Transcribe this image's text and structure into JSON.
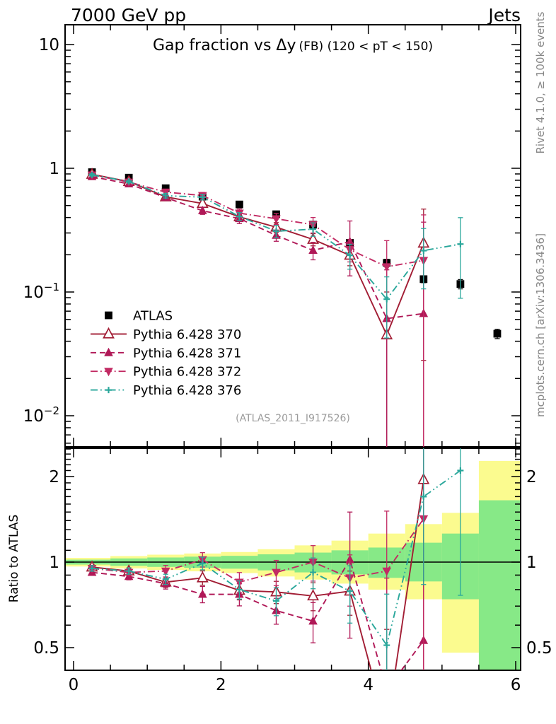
{
  "header": {
    "left": "7000 GeV pp",
    "right": "Jets"
  },
  "side_notes": {
    "top": "Rivet 4.1.0, ≥ 100k events",
    "bottom": "mcplots.cern.ch [arXiv:1306.3436]"
  },
  "watermark": "(ATLAS_2011_I917526)",
  "chart_data": {
    "type": "line",
    "title": "Gap fraction vs Δy",
    "title_note": "(FB) (120 < pT < 150)",
    "ratio_ylabel": "Ratio to ATLAS",
    "legend_position": "inside-upper-left",
    "x_axis": {
      "range": [
        -0.115,
        6.067
      ],
      "major_ticks": [
        0,
        2,
        4,
        6
      ],
      "tick_labels": [
        "0",
        "2",
        "4",
        "6"
      ],
      "minor_step": 0.5
    },
    "y_axis_main": {
      "scale": "log",
      "range": [
        0.0056,
        14.4
      ],
      "ticks": [
        {
          "value": 10,
          "text": "10"
        },
        {
          "value": 1,
          "text": "1"
        },
        {
          "value": 0.1,
          "text": "10",
          "exp": "−1"
        },
        {
          "value": 0.01,
          "text": "10",
          "exp": "−2"
        }
      ]
    },
    "y_axis_ratio": {
      "scale": "log",
      "range": [
        0.416,
        2.52
      ],
      "reference": 1,
      "ticks": [
        {
          "value": 2,
          "text": "2"
        },
        {
          "value": 1,
          "text": "1"
        },
        {
          "value": 0.5,
          "text": "0.5"
        }
      ],
      "minor_step": 0.1
    },
    "bins": {
      "centers": [
        0.25,
        0.75,
        1.25,
        1.75,
        2.25,
        2.75,
        3.25,
        3.75,
        4.25,
        4.75,
        5.25,
        5.75
      ],
      "width": 0.5
    },
    "series": [
      {
        "id": "atlas",
        "name": "ATLAS",
        "role": "reference-data",
        "color": "#000000",
        "marker": "square",
        "line": "none",
        "values": [
          0.93,
          0.84,
          0.69,
          0.59,
          0.51,
          0.425,
          0.35,
          0.25,
          0.172,
          0.127,
          0.116,
          0.046
        ],
        "errors": [
          0.01,
          0.01,
          0.01,
          0.01,
          0.012,
          0.012,
          0.012,
          0.012,
          0.012,
          0.008,
          0.01,
          0.004
        ]
      },
      {
        "id": "p370",
        "name": "Pythia 6.428 370",
        "role": "mc",
        "color": "#a21d34",
        "marker": "triangle-open",
        "line": "solid",
        "values": [
          0.893,
          0.781,
          0.587,
          0.519,
          0.405,
          0.334,
          0.266,
          0.198,
          0.045,
          0.248,
          null,
          null
        ],
        "errors": [
          0.02,
          0.02,
          0.025,
          0.03,
          0.03,
          0.03,
          0.03,
          0.035,
          0.055,
          0.22,
          null,
          null
        ],
        "ratio": [
          0.96,
          0.93,
          0.85,
          0.88,
          0.795,
          0.785,
          0.76,
          0.79,
          0.26,
          1.95,
          null,
          null
        ]
      },
      {
        "id": "p371",
        "name": "Pythia 6.428 371",
        "role": "mc",
        "color": "#b01857",
        "marker": "triangle-filled",
        "line": "dashed",
        "values": [
          0.856,
          0.748,
          0.58,
          0.454,
          0.392,
          0.287,
          0.217,
          0.255,
          0.061,
          0.067,
          null,
          null
        ],
        "errors": [
          0.02,
          0.02,
          0.025,
          0.03,
          0.035,
          0.03,
          0.035,
          0.12,
          0.09,
          0.3,
          null,
          null
        ],
        "ratio": [
          0.92,
          0.89,
          0.84,
          0.77,
          0.77,
          0.675,
          0.62,
          1.02,
          0.355,
          0.53,
          null,
          null
        ]
      },
      {
        "id": "p372",
        "name": "Pythia 6.428 372",
        "role": "mc",
        "color": "#c22a63",
        "marker": "triangle-down-filled",
        "line": "dashdot",
        "values": [
          0.884,
          0.773,
          0.642,
          0.602,
          0.434,
          0.391,
          0.35,
          0.22,
          0.16,
          0.18,
          null,
          null
        ],
        "errors": [
          0.02,
          0.02,
          0.03,
          0.035,
          0.035,
          0.04,
          0.05,
          0.045,
          0.1,
          0.24,
          null,
          null
        ],
        "ratio": [
          0.95,
          0.92,
          0.93,
          1.02,
          0.85,
          0.92,
          1.0,
          0.88,
          0.93,
          1.42,
          null,
          null
        ]
      },
      {
        "id": "p376",
        "name": "Pythia 6.428 376",
        "role": "mc",
        "color": "#2aa79b",
        "marker": "plus",
        "line": "dashdotdot",
        "values": [
          0.884,
          0.781,
          0.6,
          0.584,
          0.408,
          0.31,
          0.322,
          0.198,
          0.0875,
          0.216,
          0.244,
          null
        ],
        "errors": [
          0.02,
          0.02,
          0.025,
          0.03,
          0.03,
          0.035,
          0.04,
          0.045,
          0.045,
          0.11,
          0.155,
          null
        ],
        "ratio": [
          0.95,
          0.93,
          0.87,
          0.99,
          0.8,
          0.73,
          0.92,
          0.79,
          0.51,
          1.7,
          2.1,
          null
        ]
      }
    ],
    "uncertainty_bands": {
      "inner_color": "#87e987",
      "outer_color": "#fbfb8f",
      "bins": [
        {
          "x": [
            0.0,
            0.5
          ],
          "inner": [
            0.98,
            1.02
          ],
          "outer": [
            0.965,
            1.035
          ]
        },
        {
          "x": [
            0.5,
            1.0
          ],
          "inner": [
            0.97,
            1.03
          ],
          "outer": [
            0.95,
            1.05
          ]
        },
        {
          "x": [
            1.0,
            1.5
          ],
          "inner": [
            0.962,
            1.038
          ],
          "outer": [
            0.938,
            1.062
          ]
        },
        {
          "x": [
            1.5,
            2.0
          ],
          "inner": [
            0.955,
            1.045
          ],
          "outer": [
            0.928,
            1.072
          ]
        },
        {
          "x": [
            2.0,
            2.5
          ],
          "inner": [
            0.948,
            1.052
          ],
          "outer": [
            0.915,
            1.085
          ]
        },
        {
          "x": [
            2.5,
            3.0
          ],
          "inner": [
            0.935,
            1.065
          ],
          "outer": [
            0.89,
            1.11
          ]
        },
        {
          "x": [
            3.0,
            3.5
          ],
          "inner": [
            0.92,
            1.08
          ],
          "outer": [
            0.868,
            1.145
          ]
        },
        {
          "x": [
            3.5,
            4.0
          ],
          "inner": [
            0.905,
            1.1
          ],
          "outer": [
            0.84,
            1.19
          ]
        },
        {
          "x": [
            4.0,
            4.5
          ],
          "inner": [
            0.88,
            1.125
          ],
          "outer": [
            0.8,
            1.26
          ]
        },
        {
          "x": [
            4.5,
            5.0
          ],
          "inner": [
            0.855,
            1.17
          ],
          "outer": [
            0.74,
            1.36
          ]
        },
        {
          "x": [
            5.0,
            5.5
          ],
          "inner": [
            0.74,
            1.26
          ],
          "outer": [
            0.48,
            1.49
          ]
        },
        {
          "x": [
            5.5,
            6.0
          ],
          "inner": [
            0.4,
            1.65
          ],
          "outer": [
            0.4,
            2.27
          ]
        }
      ]
    }
  }
}
